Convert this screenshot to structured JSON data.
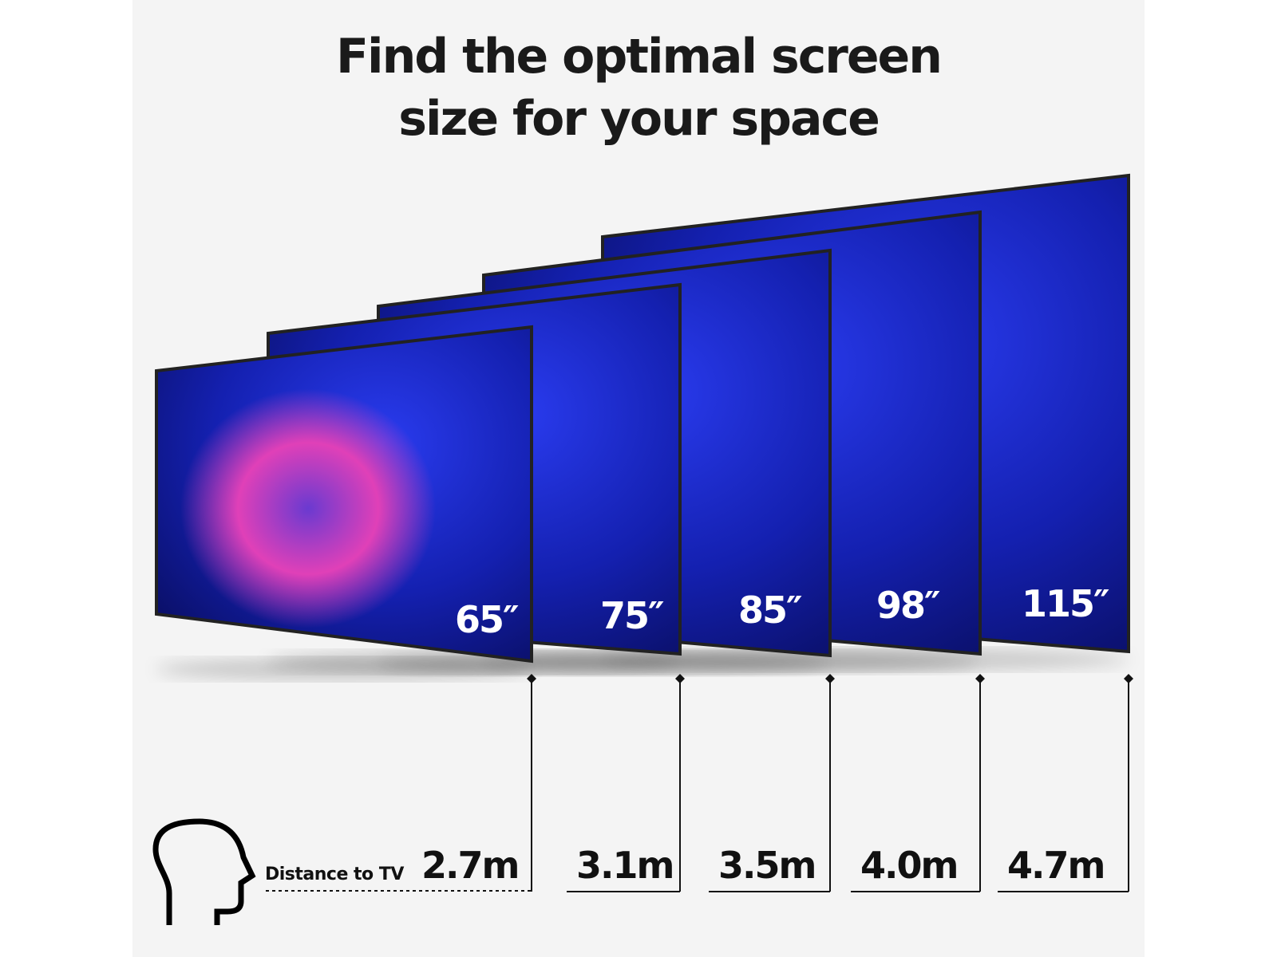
{
  "headline": {
    "line1": "Find the optimal screen",
    "line2": "size for your space"
  },
  "tvs": [
    {
      "size": "65″",
      "distance": "2.7m"
    },
    {
      "size": "75″",
      "distance": "3.1m"
    },
    {
      "size": "85″",
      "distance": "3.5m"
    },
    {
      "size": "98″",
      "distance": "4.0m"
    },
    {
      "size": "115″",
      "distance": "4.7m"
    }
  ],
  "distance_caption": "Distance to TV",
  "icons": {
    "viewer": "head-profile-icon"
  },
  "colors": {
    "background": "#f4f4f4",
    "text": "#1a1a1a",
    "screen": "#1a23c8",
    "accent": "#e23fb4"
  }
}
